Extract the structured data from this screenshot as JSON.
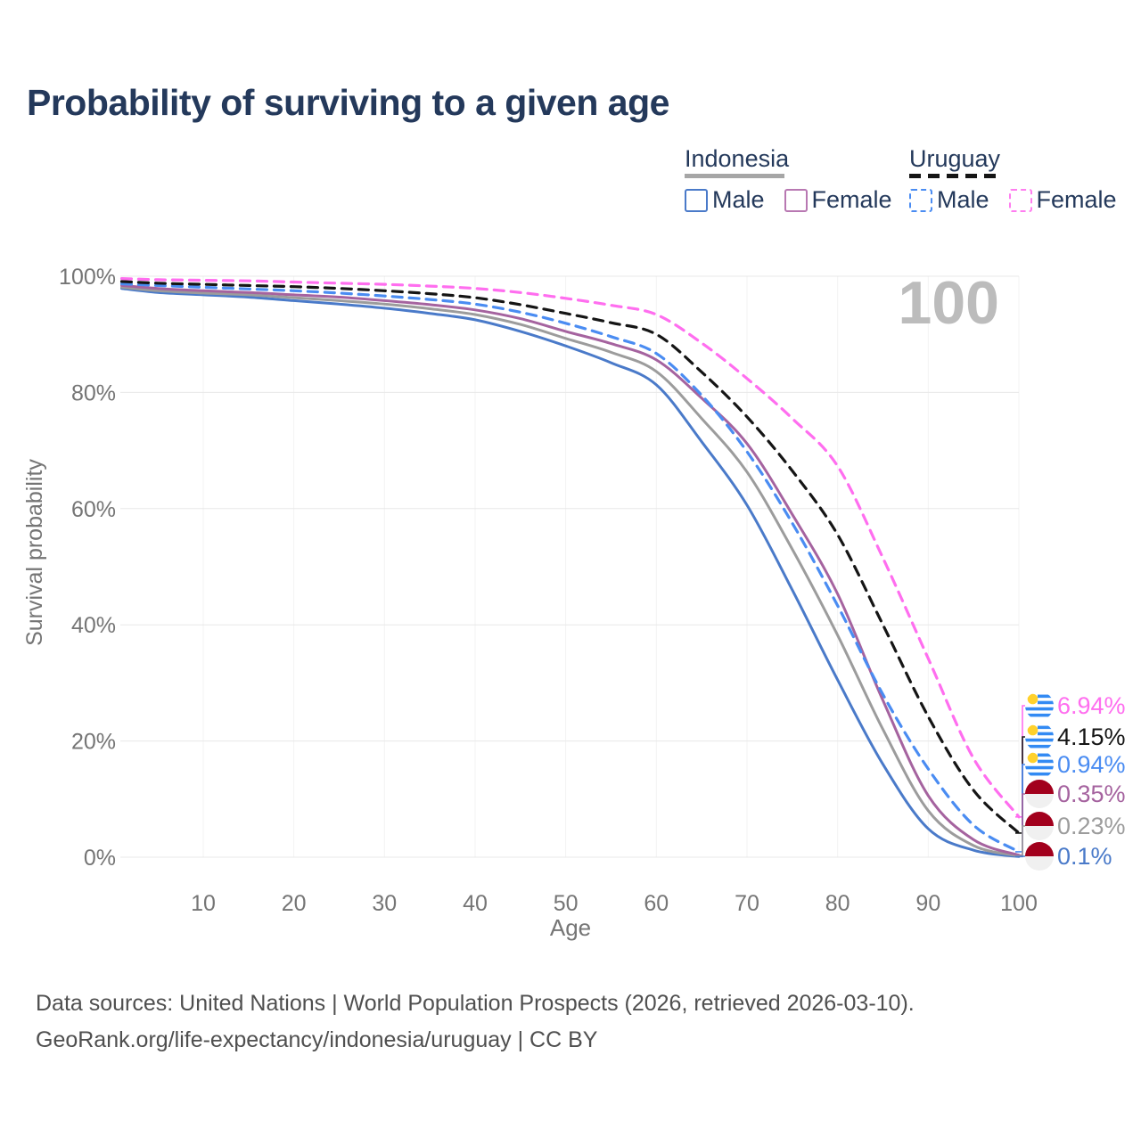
{
  "page": {
    "title": "Probability of surviving to a given age",
    "background_color": "#ffffff",
    "title_color": "#24395b"
  },
  "legend": {
    "groups": [
      {
        "label": "Indonesia",
        "line_style": "solid",
        "underline_color": "#a6a6a6",
        "items": [
          {
            "label": "Male",
            "color": "#4a7ac9"
          },
          {
            "label": "Female",
            "color": "#b878b2"
          }
        ]
      },
      {
        "label": "Uruguay",
        "line_style": "dashed",
        "underline_color": "#151515",
        "items": [
          {
            "label": "Male",
            "color": "#4a8cf2"
          },
          {
            "label": "Female",
            "color": "#ff7df0"
          }
        ]
      }
    ]
  },
  "chart_data": {
    "type": "line",
    "title": "Probability of surviving to a given age",
    "xlabel": "Age",
    "ylabel": "Survival probability",
    "xlim": [
      0,
      100
    ],
    "ylim": [
      0,
      100
    ],
    "grid": true,
    "legend_position": "top-right",
    "watermark": "100",
    "x_ticks": [
      10,
      20,
      30,
      40,
      50,
      60,
      70,
      80,
      90,
      100
    ],
    "y_ticks": [
      0,
      20,
      40,
      60,
      80,
      100
    ],
    "y_tick_labels": [
      "0%",
      "20%",
      "40%",
      "60%",
      "80%",
      "100%"
    ],
    "x": [
      1,
      5,
      10,
      15,
      20,
      25,
      30,
      35,
      40,
      45,
      50,
      55,
      60,
      65,
      70,
      75,
      80,
      85,
      90,
      95,
      100
    ],
    "series": [
      {
        "id": "indonesia-male",
        "name": "Indonesia Male",
        "country": "Indonesia",
        "sex": "male",
        "color": "#4a7ac9",
        "dash": "solid",
        "end_label": "0.1%",
        "end_value": 0.1,
        "flag": "indonesia",
        "values": [
          97.9,
          97.2,
          96.8,
          96.4,
          95.8,
          95.2,
          94.5,
          93.6,
          92.5,
          90.5,
          88.0,
          85.1,
          81.3,
          71.5,
          60.6,
          46.0,
          30.5,
          16.0,
          4.9,
          1.2,
          0.1
        ]
      },
      {
        "id": "indonesia-both",
        "name": "Indonesia Both sexes",
        "country": "Indonesia",
        "sex": "both",
        "color": "#9c9c9c",
        "dash": "solid",
        "end_label": "0.23%",
        "end_value": 0.23,
        "flag": "indonesia",
        "values": [
          98.1,
          97.5,
          97.1,
          96.8,
          96.3,
          95.8,
          95.2,
          94.4,
          93.4,
          91.7,
          89.3,
          86.9,
          83.6,
          75.5,
          66.3,
          53.0,
          38.2,
          22.0,
          8.0,
          2.0,
          0.23
        ]
      },
      {
        "id": "indonesia-female",
        "name": "Indonesia Female",
        "country": "Indonesia",
        "sex": "female",
        "color": "#a5639f",
        "dash": "solid",
        "end_label": "0.35%",
        "end_value": 0.35,
        "flag": "indonesia",
        "values": [
          98.4,
          97.9,
          97.5,
          97.2,
          96.8,
          96.4,
          95.8,
          95.1,
          94.2,
          92.7,
          90.5,
          88.4,
          85.6,
          79.0,
          71.2,
          59.0,
          45.3,
          27.0,
          10.6,
          3.0,
          0.35
        ]
      },
      {
        "id": "uruguay-male",
        "name": "Uruguay Male",
        "country": "Uruguay",
        "sex": "male",
        "color": "#4a8cf2",
        "dash": "dashed",
        "end_label": "0.94%",
        "end_value": 0.94,
        "flag": "uruguay",
        "values": [
          98.7,
          98.4,
          98.1,
          97.8,
          97.5,
          97.1,
          96.6,
          96.0,
          95.2,
          93.8,
          91.9,
          89.6,
          86.7,
          79.5,
          69.8,
          57.5,
          43.3,
          28.0,
          15.2,
          5.5,
          0.94
        ]
      },
      {
        "id": "uruguay-both",
        "name": "Uruguay Both sexes",
        "country": "Uruguay",
        "sex": "both",
        "color": "#151515",
        "dash": "dashed",
        "end_label": "4.15%",
        "end_value": 4.15,
        "flag": "uruguay",
        "values": [
          99.1,
          98.8,
          98.6,
          98.4,
          98.2,
          97.9,
          97.5,
          97.0,
          96.3,
          95.1,
          93.6,
          92.0,
          90.0,
          83.5,
          75.8,
          66.5,
          55.5,
          40.0,
          24.2,
          11.5,
          4.15
        ]
      },
      {
        "id": "uruguay-female",
        "name": "Uruguay Female",
        "country": "Uruguay",
        "sex": "female",
        "color": "#ff6eef",
        "dash": "dashed",
        "end_label": "6.94%",
        "end_value": 6.94,
        "flag": "uruguay",
        "values": [
          99.6,
          99.4,
          99.3,
          99.2,
          99.0,
          98.8,
          98.6,
          98.3,
          97.9,
          97.2,
          96.2,
          95.0,
          93.4,
          88.5,
          82.4,
          75.5,
          67.3,
          51.5,
          34.2,
          17.0,
          6.94
        ]
      }
    ],
    "end_labels_order": [
      "uruguay-female",
      "uruguay-both",
      "uruguay-male",
      "indonesia-female",
      "indonesia-both",
      "indonesia-male"
    ]
  },
  "axis": {
    "x_label": "Age",
    "y_label": "Survival probability",
    "tick_color": "#757575"
  },
  "flags": {
    "uruguay": {
      "stripe_color": "#338af3",
      "sun_color": "#ffd12c",
      "bg": "#f4f6f8"
    },
    "indonesia": {
      "top_color": "#a2001d",
      "bottom_color": "#f0f0f0"
    }
  },
  "footer": {
    "line1": "Data sources: United Nations | World Population Prospects (2026, retrieved 2026-03-10).",
    "line2": "GeoRank.org/life-expectancy/indonesia/uruguay | CC BY"
  }
}
